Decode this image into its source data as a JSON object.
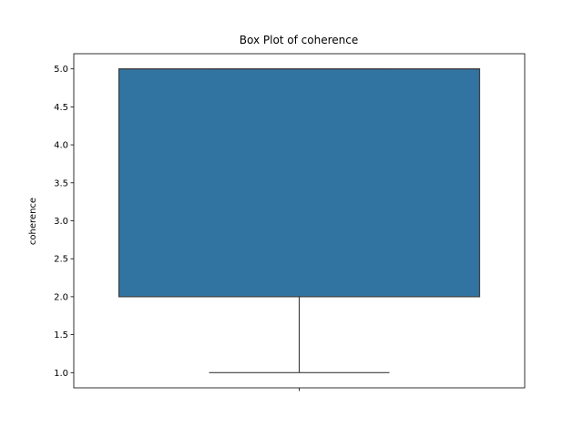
{
  "chart_data": {
    "type": "box",
    "title": "Box Plot of coherence",
    "xlabel": "",
    "ylabel": "coherence",
    "ylim": [
      0.8,
      5.2
    ],
    "yticks": [
      "1.0",
      "1.5",
      "2.0",
      "2.5",
      "3.0",
      "3.5",
      "4.0",
      "4.5",
      "5.0"
    ],
    "box": {
      "min": 1.0,
      "q1": 2.0,
      "median": 5.0,
      "q3": 5.0,
      "max": 5.0
    },
    "box_color": "#3274a1",
    "line_color": "#3f3f3f",
    "grid": false
  }
}
